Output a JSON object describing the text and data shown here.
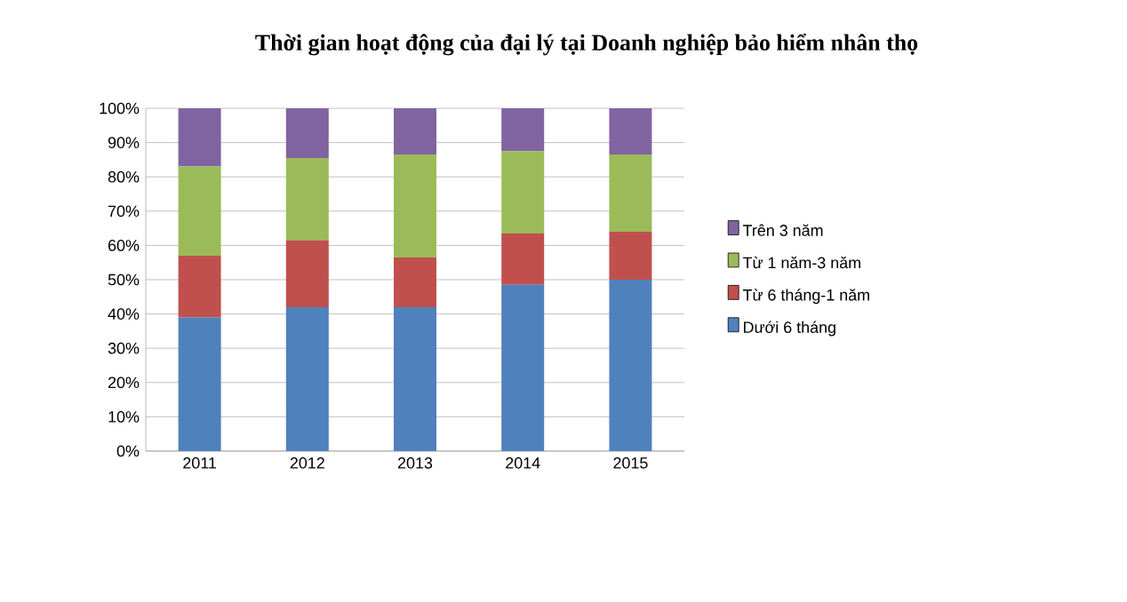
{
  "chart_data": {
    "type": "bar",
    "stacked": true,
    "title": "Thời gian hoạt động của đại lý tại Doanh nghiệp bảo hiểm nhân thọ",
    "categories": [
      "2011",
      "2012",
      "2013",
      "2014",
      "2015"
    ],
    "series": [
      {
        "name": "Dưới 6 tháng",
        "color": "#4f81bd",
        "values": [
          39,
          42,
          42,
          48.5,
          50
        ]
      },
      {
        "name": "Từ 6 tháng-1 năm",
        "color": "#c0504d",
        "values": [
          18,
          19.5,
          14.5,
          15,
          14
        ]
      },
      {
        "name": "Từ 1 năm-3 năm",
        "color": "#9bbb59",
        "values": [
          26,
          24,
          30,
          24,
          22.5
        ]
      },
      {
        "name": "Trên 3 năm",
        "color": "#8064a2",
        "values": [
          17,
          14.5,
          13.5,
          12.5,
          13.5
        ]
      }
    ],
    "ylim": [
      0,
      100
    ],
    "yticks": [
      {
        "value": 0,
        "label": "0%"
      },
      {
        "value": 10,
        "label": "10%"
      },
      {
        "value": 20,
        "label": "20%"
      },
      {
        "value": 30,
        "label": "30%"
      },
      {
        "value": 40,
        "label": "40%"
      },
      {
        "value": 50,
        "label": "50%"
      },
      {
        "value": 60,
        "label": "60%"
      },
      {
        "value": 70,
        "label": "70%"
      },
      {
        "value": 80,
        "label": "80%"
      },
      {
        "value": 90,
        "label": "90%"
      },
      {
        "value": 100,
        "label": "100%"
      }
    ],
    "grid": "y",
    "legend": "right"
  }
}
